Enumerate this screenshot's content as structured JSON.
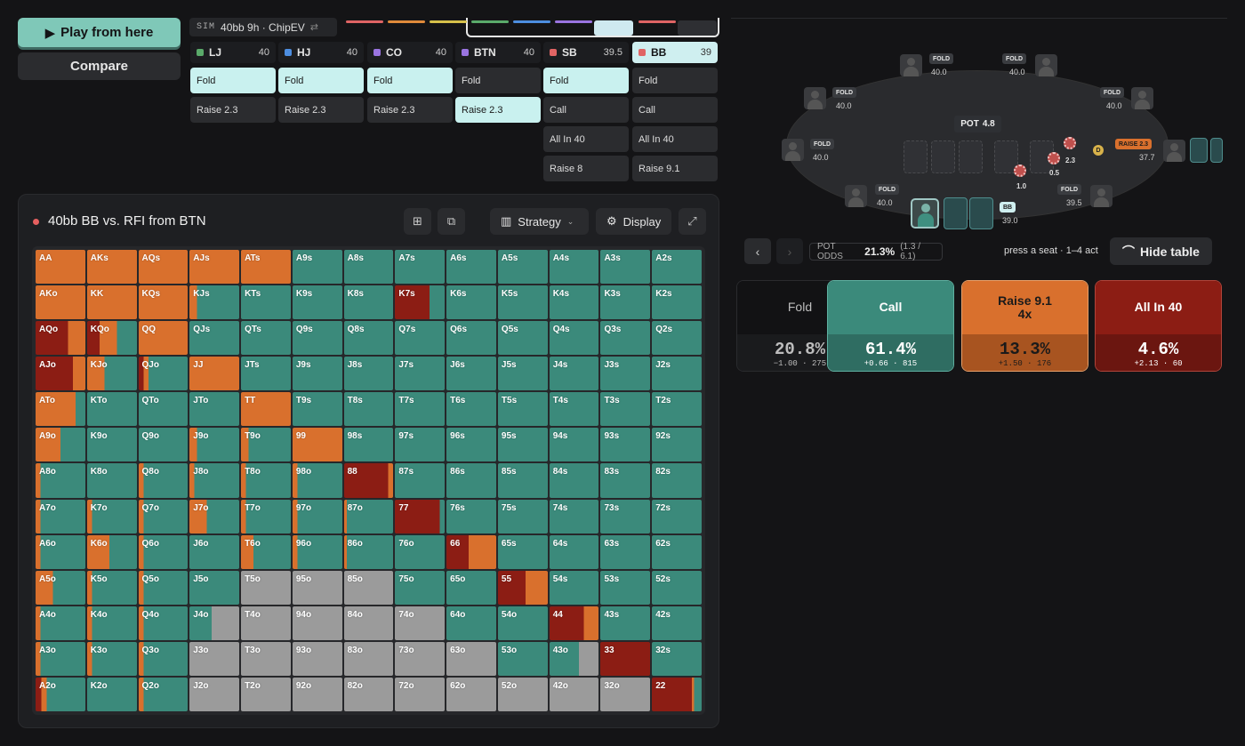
{
  "toolbar": {
    "play_label": "Play from here",
    "play_icon": "play-icon",
    "compare_label": "Compare"
  },
  "sim": {
    "tag": "SIM",
    "name": "40bb 9h · ChipEV",
    "swap_icon": "⇄"
  },
  "timeline": {
    "segment_colors": [
      "#e06464",
      "#e08a3a",
      "#d6c04a",
      "#5aaa6a",
      "#4d8ee0",
      "#9a74e0",
      "#cfe9f0",
      "#e06464",
      "#e06464"
    ]
  },
  "positions": [
    {
      "name": "LJ",
      "stack": "40",
      "color": "#5aaa6a",
      "actions": [
        "Fold",
        "Raise 2.3"
      ],
      "selected": 0
    },
    {
      "name": "HJ",
      "stack": "40",
      "color": "#4d8ee0",
      "actions": [
        "Fold",
        "Raise 2.3"
      ],
      "selected": 0
    },
    {
      "name": "CO",
      "stack": "40",
      "color": "#9a74e0",
      "actions": [
        "Fold",
        "Raise 2.3"
      ],
      "selected": 0
    },
    {
      "name": "BTN",
      "stack": "40",
      "color": "#9a74e0",
      "actions": [
        "Fold",
        "Raise 2.3"
      ],
      "selected": 1
    },
    {
      "name": "SB",
      "stack": "39.5",
      "color": "#e06464",
      "actions": [
        "Fold",
        "Call",
        "All In 40",
        "Raise 8"
      ],
      "selected": 0
    },
    {
      "name": "BB",
      "stack": "39",
      "color": "#e06464",
      "actions": [
        "Fold",
        "Call",
        "All In 40",
        "Raise 9.1"
      ],
      "selected": -1,
      "active": true
    }
  ],
  "panel": {
    "title": "40bb BB vs. RFI from BTN",
    "strategy_label": "Strategy",
    "display_label": "Display",
    "icons": [
      "grid-icon",
      "copy-icon",
      "bar-chart-icon",
      "gear-icon",
      "expand-icon"
    ]
  },
  "colors": {
    "fold": "#9b9b9b",
    "call": "#3b8a7b",
    "raise": "#d9702d",
    "allin": "#8c1d14"
  },
  "grid": [
    [
      "AA:r1",
      "AKs:r1",
      "AQs:r1",
      "AJs:r1",
      "ATs:r1",
      "A9s:c1",
      "A8s:c1",
      "A7s:c1",
      "A6s:c1",
      "A5s:c1",
      "A4s:c1",
      "A3s:c1",
      "A2s:c1"
    ],
    [
      "AKo:r1",
      "KK:r1",
      "KQs:r1",
      "KJs:r.15",
      "KTs:c1",
      "K9s:c1",
      "K8s:c1",
      "K7s:a.7",
      "K6s:c1",
      "K5s:c1",
      "K4s:c1",
      "K3s:c1",
      "K2s:c1"
    ],
    [
      "AQo:a.65,r.35",
      "KQo:a.25,r.35",
      "QQ:r1",
      "QJs:c1",
      "QTs:c1",
      "Q9s:c1",
      "Q8s:c1",
      "Q7s:c1",
      "Q6s:c1",
      "Q5s:c1",
      "Q4s:c1",
      "Q3s:c1",
      "Q2s:c1"
    ],
    [
      "AJo:a.75,r.25",
      "KJo:r.35",
      "QJo:a.1,r.1",
      "JJ:r1",
      "JTs:c1",
      "J9s:c1",
      "J8s:c1",
      "J7s:c1",
      "J6s:c1",
      "J5s:c1",
      "J4s:c1",
      "J3s:c1",
      "J2s:c1"
    ],
    [
      "ATo:r.8",
      "KTo:c1",
      "QTo:c1",
      "JTo:c1",
      "TT:r1",
      "T9s:c1",
      "T8s:c1",
      "T7s:c1",
      "T6s:c1",
      "T5s:c1",
      "T4s:c1",
      "T3s:c1",
      "T2s:c1"
    ],
    [
      "A9o:r.5",
      "K9o:c1",
      "Q9o:c1",
      "J9o:r.15",
      "T9o:r.15",
      "99:r1",
      "98s:c1",
      "97s:c1",
      "96s:c1",
      "95s:c1",
      "94s:c1",
      "93s:c1",
      "92s:c1"
    ],
    [
      "A8o:r.1",
      "K8o:c1",
      "Q8o:r.1",
      "J8o:r.1",
      "T8o:r.1",
      "98o:r.1",
      "88:a.9,r.1",
      "87s:c1",
      "86s:c1",
      "85s:c1",
      "84s:c1",
      "83s:c1",
      "82s:c1"
    ],
    [
      "A7o:r.1",
      "K7o:r.1",
      "Q7o:r.1",
      "J7o:r.35",
      "T7o:r.1",
      "97o:r.1",
      "87o:r.05",
      "77:a.9",
      "76s:c1",
      "75s:c1",
      "74s:c1",
      "73s:c1",
      "72s:c1"
    ],
    [
      "A6o:r.1",
      "K6o:r.45",
      "Q6o:r.1",
      "J6o:c1",
      "T6o:r.25",
      "96o:r.1",
      "86o:r.05",
      "76o:c1",
      "66:a.45,r.55",
      "65s:c1",
      "64s:c1",
      "63s:c1",
      "62s:c1"
    ],
    [
      "A5o:r.35",
      "K5o:r.1",
      "Q5o:r.1",
      "J5o:c1",
      "T5o:f1",
      "95o:f1",
      "85o:f1",
      "75o:c1",
      "65o:c1",
      "55:a.55,r.45",
      "54s:c1",
      "53s:c1",
      "52s:c1"
    ],
    [
      "A4o:r.1",
      "K4o:r.1",
      "Q4o:r.1",
      "J4o:c.45,f.55",
      "T4o:f1",
      "94o:f1",
      "84o:f1",
      "74o:f1",
      "64o:c1",
      "54o:c1",
      "44:a.7,r.3",
      "43s:c1",
      "42s:c1"
    ],
    [
      "A3o:r.1",
      "K3o:r.1",
      "Q3o:r.1",
      "J3o:f1",
      "T3o:f1",
      "93o:f1",
      "83o:f1",
      "73o:f1",
      "63o:f1",
      "53o:c1",
      "43o:c.6,f.4",
      "33:a1",
      "32s:c1"
    ],
    [
      "A2o:a.12,r.1",
      "K2o:c1",
      "Q2o:r.1",
      "J2o:f1",
      "T2o:f1",
      "92o:f1",
      "82o:f1",
      "72o:f1",
      "62o:f1",
      "52o:f1",
      "42o:f1",
      "32o:f1",
      "22:a.8,r.05"
    ]
  ],
  "table": {
    "pot_label": "POT",
    "pot_value": "4.8",
    "seats": [
      {
        "action": "FOLD",
        "stack": "40.0"
      },
      {
        "action": "FOLD",
        "stack": "40.0"
      },
      {
        "action": "FOLD",
        "stack": "40.0"
      },
      {
        "action": "FOLD",
        "stack": "40.0"
      },
      {
        "action": "FOLD",
        "stack": "40.0"
      },
      {
        "action": "FOLD",
        "stack": "40.0"
      },
      {
        "action": "FOLD",
        "stack": "39.5"
      },
      {
        "action": "RAISE 2.3",
        "stack": "37.7"
      }
    ],
    "hero": {
      "tag": "BB",
      "stack": "39.0"
    },
    "chips": [
      "1.0",
      "0.5",
      "2.3"
    ],
    "dealer": "D"
  },
  "nav": {
    "prev_icon": "‹",
    "next_icon": "›",
    "pot_odds_label": "POT ODDS",
    "pot_odds_value": "21.3%",
    "pot_odds_ratio": "(1.3 / 6.1)",
    "hint": "press a seat · 1–4 act",
    "hide_label": "Hide table"
  },
  "actions": [
    {
      "name": "Fold",
      "sub": "",
      "pct": "20.8%",
      "ev": "−1.00 · 275",
      "top": "#121214",
      "bot": "#1a1b1d",
      "fg": "#bdbdbd",
      "border": "#2a2b2e"
    },
    {
      "name": "Call",
      "sub": "",
      "pct": "61.4%",
      "ev": "+0.66 · 815",
      "top": "#3b8a7b",
      "bot": "#2f6d62",
      "fg": "#ffffff",
      "border": "#5fb0a0"
    },
    {
      "name": "Raise 9.1",
      "sub": "4x",
      "pct": "13.3%",
      "ev": "+1.50 · 176",
      "top": "#d9702d",
      "bot": "#a85420",
      "fg": "#1a1a1a",
      "border": "#e8a06a"
    },
    {
      "name": "All In 40",
      "sub": "",
      "pct": "4.6%",
      "ev": "+2.13 · 60",
      "top": "#8c1d14",
      "bot": "#6b1610",
      "fg": "#ffffff",
      "border": "#b0443a"
    }
  ]
}
